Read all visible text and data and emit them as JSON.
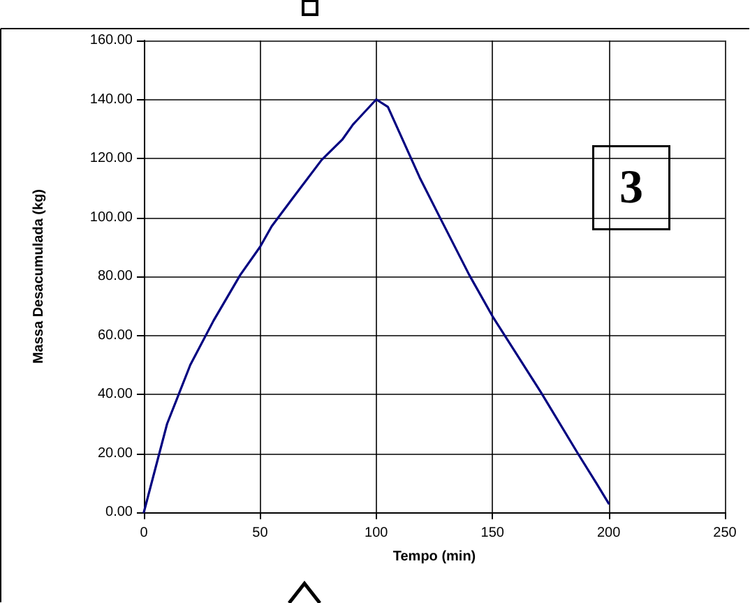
{
  "chart_data": {
    "type": "line",
    "xlabel": "Tempo (min)",
    "ylabel": "Massa Desacumulada (kg)",
    "annotations": [
      "3"
    ],
    "x": [
      0,
      10,
      20,
      30,
      41.5,
      50,
      55,
      65,
      76.5,
      85.5,
      90,
      100,
      105,
      118.7,
      127.7,
      140,
      150,
      171,
      186.7,
      195,
      200
    ],
    "series": [
      {
        "color": "#000080",
        "values": [
          0,
          30,
          50,
          65,
          80.5,
          90,
          97,
          107.5,
          119.5,
          126.5,
          131.5,
          140,
          137.5,
          113.5,
          99.5,
          80.5,
          66.5,
          40.5,
          20,
          9.5,
          3
        ]
      }
    ],
    "xlim": [
      0,
      250
    ],
    "xticks": [
      0,
      50,
      100,
      150,
      200,
      250
    ],
    "ylim": [
      0,
      160
    ],
    "yticks": [
      {
        "value": 0,
        "label": "0.00"
      },
      {
        "value": 20,
        "label": "20.00"
      },
      {
        "value": 40,
        "label": "40.00"
      },
      {
        "value": 60,
        "label": "60.00"
      },
      {
        "value": 80,
        "label": "80.00"
      },
      {
        "value": 100,
        "label": "100.00"
      },
      {
        "value": 120,
        "label": "120.00"
      },
      {
        "value": 140,
        "label": "140.00"
      },
      {
        "value": 160,
        "label": "160.00"
      }
    ],
    "grid": true,
    "marker": "none",
    "line_style": "solid"
  }
}
